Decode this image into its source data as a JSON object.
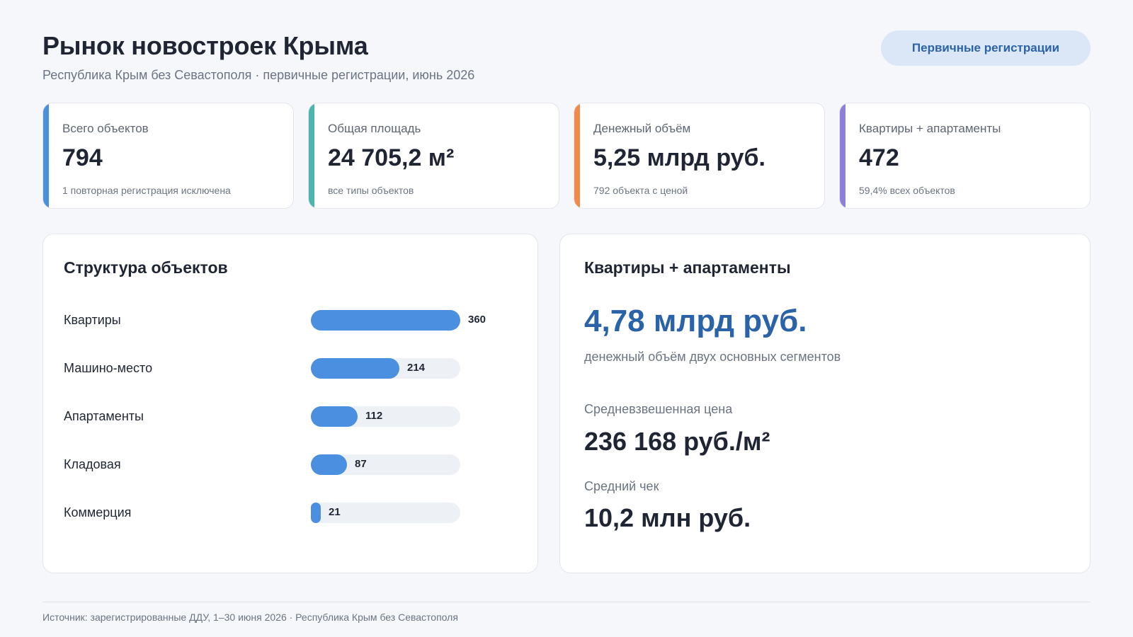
{
  "header": {
    "title": "Рынок новостроек Крыма",
    "subtitle": "Республика Крым без Севастополя · первичные регистрации, июнь 2026",
    "pill_label": "Первичные регистрации"
  },
  "kpis": [
    {
      "label": "Всего объектов",
      "value": "794",
      "note": "1 повторная регистрация исключена",
      "color": "#4a8fe0"
    },
    {
      "label": "Общая площадь",
      "value": "24 705,2 м²",
      "note": "все типы объектов",
      "color": "#4db6ac"
    },
    {
      "label": "Денежный объём",
      "value": "5,25 млрд руб.",
      "note": "792 объекта с ценой",
      "color": "#f08a4b"
    },
    {
      "label": "Квартиры + апартаменты",
      "value": "472",
      "note": "59,4% всех объектов",
      "color": "#8f7fd8"
    }
  ],
  "structure": {
    "title": "Структура объектов",
    "rows": [
      {
        "label": "Квартиры",
        "value": 360
      },
      {
        "label": "Машино-место",
        "value": 214
      },
      {
        "label": "Апартаменты",
        "value": 112
      },
      {
        "label": "Кладовая",
        "value": 87
      },
      {
        "label": "Коммерция",
        "value": 21
      }
    ]
  },
  "segments": {
    "title": "Квартиры + апартаменты",
    "big_value": "4,78 млрд руб.",
    "big_note": "денежный объём двух основных сегментов",
    "avg_price_label": "Средневзвешенная цена",
    "avg_price_value": "236 168 руб./м²",
    "avg_check_label": "Средний чек",
    "avg_check_value": "10,2 млн руб."
  },
  "footer": {
    "source": "Источник: зарегистрированные ДДУ, 1–30 июня 2026 · Республика Крым без Севастополя"
  }
}
